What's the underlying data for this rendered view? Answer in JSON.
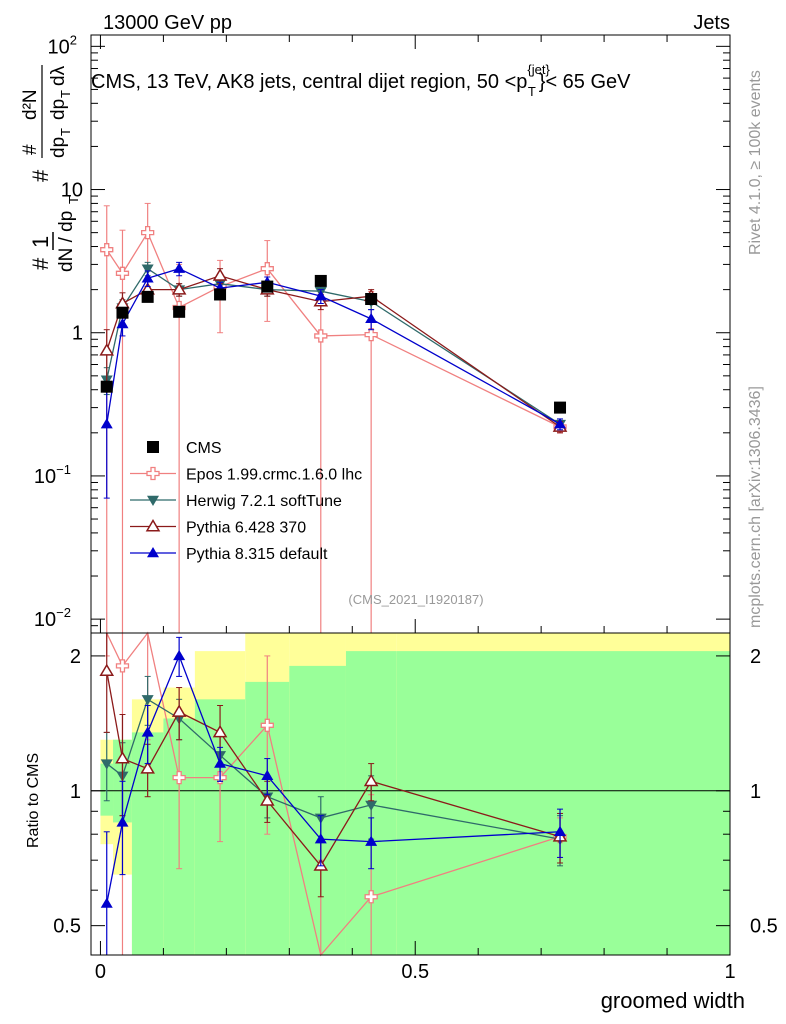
{
  "header": {
    "energy": "13000 GeV pp",
    "category": "Jets"
  },
  "side_labels": {
    "rivet": "Rivet 4.1.0, ≥ 100k events",
    "mcplots": "mcplots.cern.ch [arXiv:1306.3436]"
  },
  "chart_data": {
    "type": "line",
    "title": "CMS, 13 TeV, AK8 jets, central dijet region, 50 <p_T^{jet}< 65 GeV",
    "title_parts": {
      "pre": "CMS, 13 TeV, AK8 jets, central dijet region, 50 <p",
      "sup": "{jet}",
      "sub": "T",
      "post": "}< 65 GeV"
    },
    "analysis_id": "(CMS_2021_I1920187)",
    "xlabel": "groomed width",
    "ylabel": "# 1/(dN/dp_T) # d²N/(dp_T dλ)",
    "ratio_ylabel": "Ratio to CMS",
    "xlim": [
      -0.015,
      1.0
    ],
    "ylim": [
      0.008,
      120
    ],
    "yscale": "log",
    "ratio_ylim": [
      0.43,
      2.25
    ],
    "x_ticks": [
      {
        "value": 0,
        "label": "0"
      },
      {
        "value": 0.5,
        "label": "0.5"
      },
      {
        "value": 1,
        "label": "1"
      }
    ],
    "y_ticks": [
      {
        "value": 100,
        "base": "10",
        "exp": "2"
      },
      {
        "value": 10,
        "base": "10",
        "exp": ""
      },
      {
        "value": 1,
        "base": "1",
        "exp": ""
      },
      {
        "value": 0.1,
        "base": "10",
        "exp": "−1"
      },
      {
        "value": 0.01,
        "base": "10",
        "exp": "−2"
      }
    ],
    "ratio_ticks": [
      {
        "value": 0.5,
        "label": "0.5"
      },
      {
        "value": 1,
        "label": "1"
      },
      {
        "value": 2,
        "label": "2"
      }
    ],
    "x": [
      0.01,
      0.035,
      0.075,
      0.125,
      0.19,
      0.265,
      0.35,
      0.43,
      0.73
    ],
    "bin_edges": [
      0,
      0.02,
      0.05,
      0.1,
      0.15,
      0.23,
      0.3,
      0.39,
      0.47,
      1.0
    ],
    "band_yellow": [
      [
        0.76,
        1.3
      ],
      [
        0.65,
        1.3
      ],
      [
        0.2,
        1.6
      ],
      [
        0.2,
        1.7
      ],
      [
        0.2,
        2.05
      ],
      [
        0.35,
        2.4
      ],
      [
        0.2,
        2.25
      ],
      [
        0.2,
        2.6
      ],
      [
        0.2,
        2.6
      ]
    ],
    "band_green": [
      [
        0.88,
        1.15
      ],
      [
        0.85,
        1.3
      ],
      [
        0.25,
        1.35
      ],
      [
        0.25,
        1.45
      ],
      [
        0.25,
        1.6
      ],
      [
        0.25,
        1.75
      ],
      [
        0.2,
        1.9
      ],
      [
        0.2,
        2.05
      ],
      [
        0.2,
        2.05
      ]
    ],
    "series": [
      {
        "name": "CMS",
        "color": "#000000",
        "marker": "square",
        "values": [
          0.42,
          1.38,
          1.78,
          1.4,
          1.85,
          2.1,
          2.3,
          1.72,
          0.3
        ],
        "errors": [
          0.04,
          0.1,
          0.1,
          0.1,
          0.1,
          0.1,
          0.1,
          0.1,
          0.02
        ],
        "ratio": [
          1,
          1,
          1,
          1,
          1,
          1,
          1,
          1,
          1
        ],
        "ratio_err": [
          0,
          0,
          0,
          0,
          0,
          0,
          0,
          0,
          0
        ]
      },
      {
        "name": "Epos 1.99.crmc.1.6.0 lhc",
        "color": "#f08080",
        "marker": "cross",
        "values": [
          3.8,
          2.6,
          5.0,
          1.5,
          2.1,
          2.8,
          0.95,
          0.97,
          0.22
        ],
        "errors": [
          3.9,
          2.6,
          3.0,
          1.5,
          1.1,
          1.6,
          0.95,
          0.97,
          0.02
        ],
        "ratio": [
          5.0,
          1.9,
          2.8,
          1.07,
          1.07,
          1.4,
          0.4,
          0.58,
          0.79
        ],
        "ratio_err": [
          3,
          1.5,
          1.5,
          0.4,
          0.3,
          0.6,
          0.3,
          0.4,
          0.08
        ]
      },
      {
        "name": "Herwig 7.2.1 softTune",
        "color": "#2f6a6a",
        "marker": "triangle-down",
        "values": [
          0.47,
          1.5,
          2.8,
          2.0,
          2.2,
          2.0,
          1.95,
          1.65,
          0.23
        ],
        "errors": [
          0.1,
          0.2,
          0.3,
          0.2,
          0.2,
          0.2,
          0.2,
          0.2,
          0.02
        ],
        "ratio": [
          1.15,
          1.08,
          1.6,
          1.45,
          1.2,
          0.97,
          0.87,
          0.93,
          0.78
        ],
        "ratio_err": [
          0.2,
          0.2,
          0.2,
          0.15,
          0.15,
          0.1,
          0.1,
          0.15,
          0.1
        ]
      },
      {
        "name": "Pythia 6.428 370",
        "color": "#8b1a1a",
        "marker": "triangle-up-open",
        "values": [
          0.75,
          1.6,
          2.0,
          2.0,
          2.5,
          2.0,
          1.65,
          1.8,
          0.22
        ],
        "errors": [
          0.3,
          0.3,
          0.3,
          0.2,
          0.3,
          0.2,
          0.2,
          0.2,
          0.02
        ],
        "ratio": [
          1.85,
          1.18,
          1.12,
          1.5,
          1.35,
          0.95,
          0.68,
          1.05,
          0.79
        ],
        "ratio_err": [
          0.5,
          0.3,
          0.15,
          0.2,
          0.2,
          0.1,
          0.1,
          0.1,
          0.1
        ]
      },
      {
        "name": "Pythia 8.315 default",
        "color": "#0000cc",
        "marker": "triangle-up",
        "values": [
          0.23,
          1.15,
          2.4,
          2.8,
          2.05,
          2.25,
          1.8,
          1.25,
          0.23
        ],
        "errors": [
          0.16,
          0.2,
          0.3,
          0.3,
          0.2,
          0.2,
          0.2,
          0.2,
          0.02
        ],
        "ratio": [
          0.56,
          0.85,
          1.35,
          2.0,
          1.15,
          1.08,
          0.78,
          0.77,
          0.81
        ],
        "ratio_err": [
          0.25,
          0.2,
          0.2,
          0.2,
          0.1,
          0.1,
          0.1,
          0.1,
          0.1
        ]
      }
    ]
  }
}
